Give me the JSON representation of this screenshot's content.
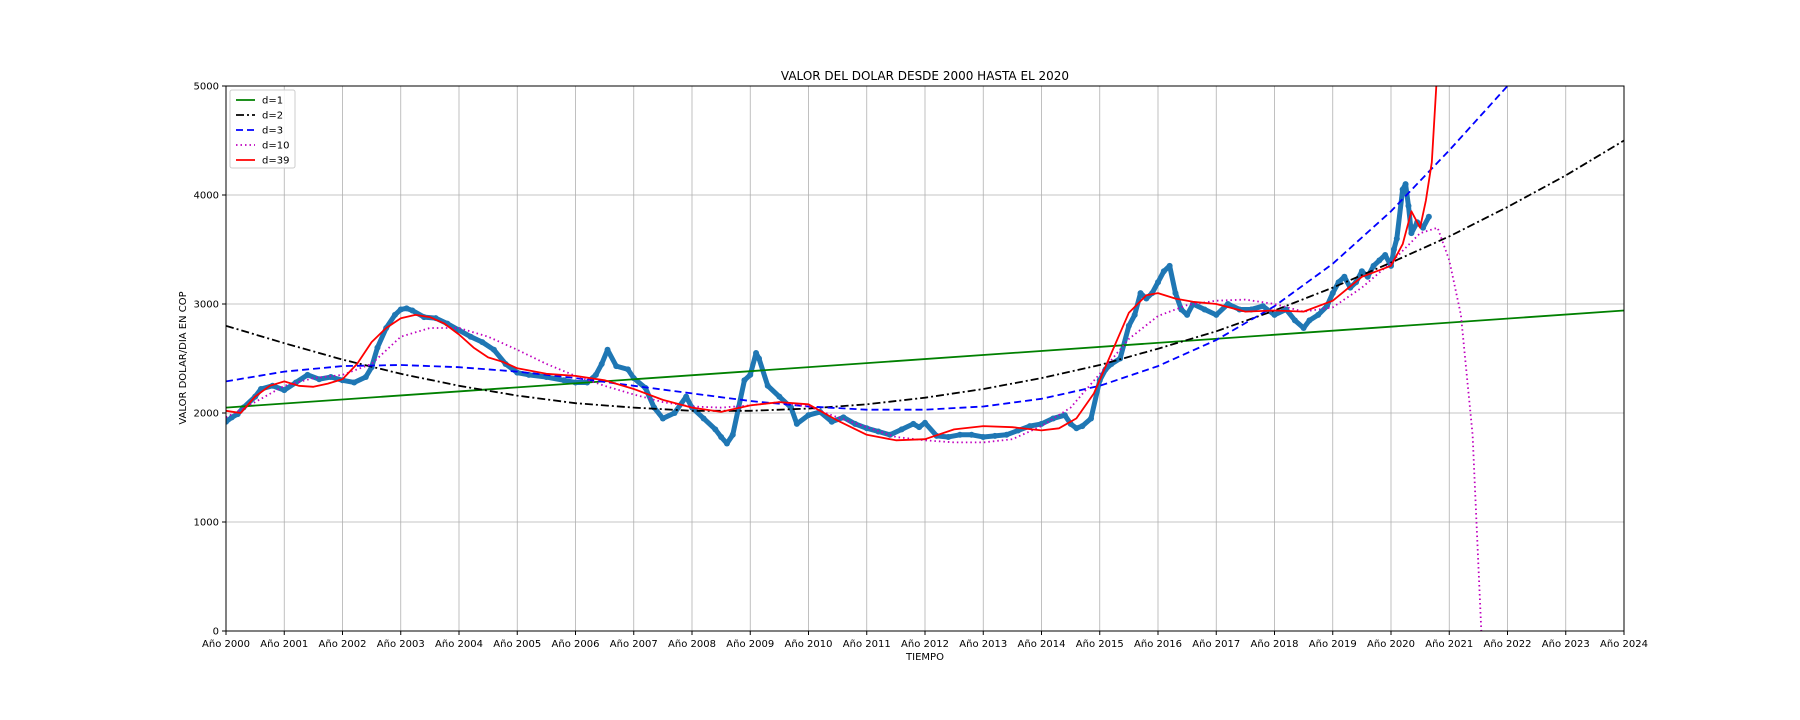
{
  "chart_data": {
    "type": "line",
    "title": "VALOR DEL DOLAR DESDE 2000 HASTA EL 2020",
    "xlabel": "TIEMPO",
    "ylabel": "VALOR DOLAR/DIA EN COP",
    "xlim": [
      2000,
      2024
    ],
    "ylim": [
      0,
      5000
    ],
    "grid": true,
    "legend_position": "top-left",
    "x_ticks": [
      2000,
      2001,
      2002,
      2003,
      2004,
      2005,
      2006,
      2007,
      2008,
      2009,
      2010,
      2011,
      2012,
      2013,
      2014,
      2015,
      2016,
      2017,
      2018,
      2019,
      2020,
      2021,
      2022,
      2023,
      2024
    ],
    "x_tick_labels": [
      "Año 2000",
      "Año 2001",
      "Año 2002",
      "Año 2003",
      "Año 2004",
      "Año 2005",
      "Año 2006",
      "Año 2007",
      "Año 2008",
      "Año 2009",
      "Año 2010",
      "Año 2011",
      "Año 2012",
      "Año 2013",
      "Año 2014",
      "Año 2015",
      "Año 2016",
      "Año 2017",
      "Año 2018",
      "Año 2019",
      "Año 2020",
      "Año 2021",
      "Año 2022",
      "Año 2023",
      "Año 2024"
    ],
    "y_ticks": [
      0,
      1000,
      2000,
      3000,
      4000,
      5000
    ],
    "y_tick_labels": [
      "0",
      "1000",
      "2000",
      "3000",
      "4000",
      "5000"
    ],
    "scatter_series": {
      "color": "#1f77b4",
      "x": [
        2000.0,
        2000.1,
        2000.2,
        2000.3,
        2000.5,
        2000.6,
        2000.8,
        2001.0,
        2001.2,
        2001.4,
        2001.6,
        2001.8,
        2002.0,
        2002.2,
        2002.4,
        2002.5,
        2002.6,
        2002.75,
        2002.9,
        2003.0,
        2003.1,
        2003.2,
        2003.4,
        2003.6,
        2003.8,
        2004.0,
        2004.2,
        2004.4,
        2004.6,
        2004.8,
        2005.0,
        2005.2,
        2005.5,
        2005.8,
        2006.0,
        2006.2,
        2006.35,
        2006.45,
        2006.55,
        2006.7,
        2006.9,
        2007.0,
        2007.2,
        2007.35,
        2007.5,
        2007.7,
        2007.9,
        2008.0,
        2008.2,
        2008.4,
        2008.5,
        2008.6,
        2008.7,
        2008.8,
        2008.9,
        2009.0,
        2009.1,
        2009.15,
        2009.3,
        2009.5,
        2009.7,
        2009.8,
        2010.0,
        2010.2,
        2010.4,
        2010.6,
        2010.8,
        2011.0,
        2011.2,
        2011.4,
        2011.6,
        2011.8,
        2011.9,
        2012.0,
        2012.2,
        2012.4,
        2012.6,
        2012.8,
        2013.0,
        2013.2,
        2013.4,
        2013.6,
        2013.8,
        2014.0,
        2014.2,
        2014.4,
        2014.5,
        2014.6,
        2014.7,
        2014.85,
        2015.0,
        2015.1,
        2015.2,
        2015.35,
        2015.5,
        2015.6,
        2015.7,
        2015.8,
        2015.9,
        2016.0,
        2016.1,
        2016.2,
        2016.3,
        2016.4,
        2016.5,
        2016.6,
        2016.8,
        2017.0,
        2017.2,
        2017.4,
        2017.6,
        2017.8,
        2018.0,
        2018.2,
        2018.35,
        2018.5,
        2018.6,
        2018.75,
        2018.9,
        2019.0,
        2019.1,
        2019.2,
        2019.3,
        2019.4,
        2019.5,
        2019.6,
        2019.7,
        2019.8,
        2019.9,
        2020.0,
        2020.05,
        2020.1,
        2020.2,
        2020.25,
        2020.3,
        2020.35,
        2020.45,
        2020.55,
        2020.65
      ],
      "y": [
        1920,
        1960,
        1990,
        2050,
        2150,
        2220,
        2250,
        2210,
        2280,
        2350,
        2310,
        2330,
        2300,
        2280,
        2330,
        2420,
        2600,
        2780,
        2900,
        2950,
        2960,
        2940,
        2880,
        2870,
        2820,
        2760,
        2700,
        2650,
        2580,
        2450,
        2370,
        2350,
        2330,
        2300,
        2280,
        2280,
        2350,
        2450,
        2580,
        2430,
        2400,
        2320,
        2230,
        2050,
        1950,
        2000,
        2150,
        2050,
        1950,
        1850,
        1780,
        1720,
        1800,
        2050,
        2300,
        2350,
        2550,
        2500,
        2250,
        2150,
        2050,
        1900,
        1980,
        2010,
        1920,
        1960,
        1900,
        1860,
        1830,
        1800,
        1850,
        1900,
        1870,
        1910,
        1790,
        1780,
        1800,
        1800,
        1780,
        1790,
        1800,
        1840,
        1880,
        1900,
        1950,
        1980,
        1900,
        1860,
        1880,
        1950,
        2300,
        2400,
        2450,
        2500,
        2800,
        2900,
        3100,
        3050,
        3100,
        3200,
        3300,
        3350,
        3100,
        2950,
        2900,
        3000,
        2950,
        2900,
        3000,
        2950,
        2950,
        2980,
        2900,
        2950,
        2850,
        2780,
        2850,
        2900,
        2980,
        3100,
        3200,
        3250,
        3150,
        3200,
        3300,
        3250,
        3350,
        3400,
        3450,
        3350,
        3500,
        3600,
        4050,
        4100,
        3900,
        3650,
        3750,
        3700,
        3800
      ]
    },
    "series": [
      {
        "name": "d=1",
        "color": "#008000",
        "style": "solid",
        "x": [
          2000,
          2024
        ],
        "y": [
          2050,
          2940
        ]
      },
      {
        "name": "d=2",
        "color": "#000000",
        "style": "dashdot",
        "x": [
          2000,
          2001,
          2002,
          2003,
          2004,
          2005,
          2006,
          2007,
          2008,
          2009,
          2010,
          2011,
          2012,
          2013,
          2014,
          2015,
          2016,
          2017,
          2018,
          2019,
          2020,
          2021,
          2022,
          2023,
          2024
        ],
        "y": [
          2800,
          2640,
          2490,
          2360,
          2250,
          2160,
          2090,
          2050,
          2020,
          2020,
          2040,
          2080,
          2140,
          2220,
          2320,
          2440,
          2590,
          2750,
          2940,
          3150,
          3380,
          3620,
          3890,
          4180,
          4500
        ]
      },
      {
        "name": "d=3",
        "color": "#0000ff",
        "style": "dashed",
        "x": [
          2000,
          2001,
          2002,
          2003,
          2004,
          2005,
          2006,
          2007,
          2008,
          2009,
          2010,
          2011,
          2012,
          2013,
          2014,
          2015,
          2016,
          2017,
          2018,
          2019,
          2020,
          2021,
          2022,
          2023
        ],
        "y": [
          2290,
          2380,
          2430,
          2440,
          2420,
          2380,
          2320,
          2250,
          2180,
          2110,
          2060,
          2030,
          2030,
          2060,
          2130,
          2250,
          2430,
          2670,
          2980,
          3370,
          3850,
          4410,
          5000,
          5700
        ]
      },
      {
        "name": "d=10",
        "color": "#bf00bf",
        "style": "dotted",
        "x": [
          2000,
          2000.5,
          2001,
          2001.5,
          2002,
          2002.5,
          2003,
          2003.5,
          2004,
          2004.5,
          2005,
          2005.5,
          2006,
          2006.5,
          2007,
          2007.5,
          2008,
          2008.5,
          2009,
          2009.5,
          2010,
          2010.5,
          2011,
          2011.5,
          2012,
          2012.5,
          2013,
          2013.5,
          2014,
          2014.5,
          2015,
          2015.5,
          2016,
          2016.5,
          2017,
          2017.5,
          2018,
          2018.5,
          2019,
          2019.5,
          2020,
          2020.5,
          2020.8,
          2021,
          2021.2,
          2021.4,
          2021.55
        ],
        "y": [
          1960,
          2100,
          2250,
          2320,
          2350,
          2450,
          2700,
          2780,
          2780,
          2700,
          2580,
          2450,
          2340,
          2250,
          2170,
          2100,
          2060,
          2050,
          2070,
          2100,
          2060,
          1960,
          1870,
          1780,
          1750,
          1730,
          1730,
          1760,
          1880,
          2050,
          2360,
          2680,
          2890,
          2990,
          3030,
          3040,
          3000,
          2930,
          2970,
          3150,
          3380,
          3650,
          3700,
          3400,
          2900,
          1800,
          0
        ]
      },
      {
        "name": "d=39",
        "color": "#ff0000",
        "style": "solid",
        "x": [
          2000,
          2000.25,
          2000.5,
          2000.75,
          2001,
          2001.25,
          2001.5,
          2001.75,
          2002,
          2002.25,
          2002.5,
          2002.75,
          2003,
          2003.25,
          2003.5,
          2003.75,
          2004,
          2004.25,
          2004.5,
          2004.75,
          2005,
          2005.5,
          2006,
          2006.5,
          2007,
          2007.5,
          2008,
          2008.5,
          2009,
          2009.5,
          2010,
          2010.5,
          2011,
          2011.5,
          2012,
          2012.5,
          2013,
          2013.5,
          2014,
          2014.3,
          2014.6,
          2014.9,
          2015.2,
          2015.5,
          2015.8,
          2016,
          2016.3,
          2016.6,
          2017,
          2017.5,
          2018,
          2018.5,
          2019,
          2019.5,
          2020,
          2020.2,
          2020.35,
          2020.5,
          2020.6,
          2020.7,
          2020.8,
          2020.9
        ],
        "y": [
          2020,
          2000,
          2150,
          2250,
          2290,
          2250,
          2240,
          2270,
          2310,
          2450,
          2650,
          2780,
          2870,
          2900,
          2880,
          2820,
          2720,
          2600,
          2510,
          2470,
          2410,
          2360,
          2340,
          2300,
          2220,
          2120,
          2050,
          2010,
          2070,
          2100,
          2080,
          1930,
          1800,
          1750,
          1760,
          1850,
          1880,
          1870,
          1840,
          1860,
          1950,
          2180,
          2550,
          2920,
          3080,
          3100,
          3050,
          3020,
          3000,
          2930,
          2940,
          2930,
          3030,
          3250,
          3350,
          3550,
          3850,
          3700,
          3950,
          4300,
          5200,
          5700
        ]
      }
    ]
  }
}
